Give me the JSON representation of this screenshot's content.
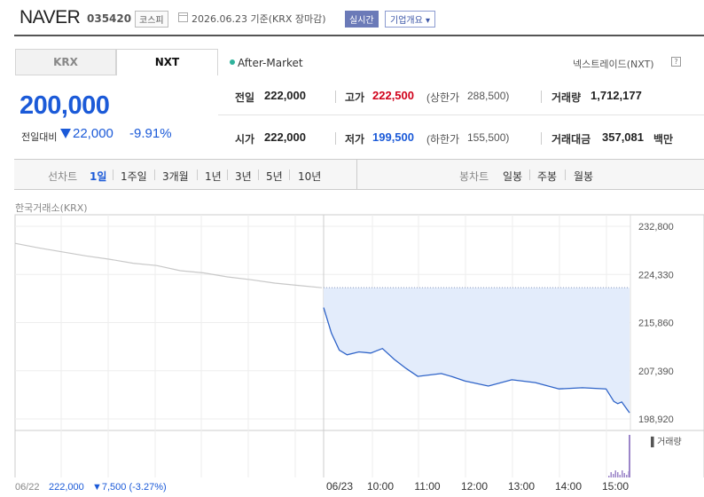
{
  "header": {
    "name": "NAVER",
    "code": "035420",
    "market": "코스피",
    "date": "2026.06.23 기준(KRX 장마감)",
    "realtime": "실시간",
    "overview": "기업개요 ▾"
  },
  "tabs": {
    "krx": "KRX",
    "nxt": "NXT"
  },
  "after_market": "After-Market",
  "nxt_trade": "넥스트레이드(NXT)",
  "help": "?",
  "price": {
    "current": "200,000",
    "change_label": "전일대비",
    "change": "22,000",
    "change_pct": "-9.91%"
  },
  "stats": {
    "prev_close_label": "전일",
    "prev_close": "222,000",
    "open_label": "시가",
    "open": "222,000",
    "high_label": "고가",
    "high": "222,500",
    "upper_limit_label": "(상한가",
    "upper_limit": "288,500)",
    "low_label": "저가",
    "low": "199,500",
    "lower_limit_label": "(하한가",
    "lower_limit": "155,500)",
    "volume_label": "거래량",
    "volume": "1,712,177",
    "amount_label": "거래대금",
    "amount": "357,081",
    "amount_unit": "백만"
  },
  "period": {
    "line_label": "선차트",
    "line_options": [
      "1일",
      "1주일",
      "3개월",
      "1년",
      "3년",
      "5년",
      "10년"
    ],
    "candle_label": "봉차트",
    "candle_options": [
      "일봉",
      "주봉",
      "월봉"
    ]
  },
  "chart_source": "한국거래소(KRX)",
  "colors": {
    "up": "#d0021b",
    "down": "#1b5ad8",
    "accent": "#6b7ab8"
  },
  "chart_data": {
    "type": "line",
    "y_ticks": [
      "232,800",
      "224,330",
      "215,860",
      "207,390",
      "198,920"
    ],
    "ylim": [
      198920,
      232800
    ],
    "reference_price": 222000,
    "x_ticks": [
      "06/23",
      "10:00",
      "11:00",
      "12:00",
      "13:00",
      "14:00",
      "15:00"
    ],
    "prev_day_label": "06/22",
    "prev_day_close": "222,000",
    "prev_day_change": "▼7,500 (-3.27%)",
    "volume_label": "▌거래량",
    "series": [
      {
        "name": "",
        "x": [
          "06/22 09:00",
          "06/22 09:30",
          "06/22 10:00",
          "06/22 10:30",
          "06/22 11:00",
          "06/22 11:30",
          "06/22 12:00",
          "06/22 12:30",
          "06/22 13:00",
          "06/22 13:30",
          "06/22 14:00",
          "06/22 14:30",
          "06/22 15:00",
          "06/22 15:30"
        ],
        "y": [
          229800,
          229000,
          228300,
          227600,
          227000,
          226300,
          225900,
          225000,
          224600,
          223900,
          223400,
          222800,
          222400,
          222000
        ]
      },
      {
        "name": "",
        "x": [
          "09:00",
          "09:10",
          "09:20",
          "09:30",
          "09:45",
          "10:00",
          "10:15",
          "10:30",
          "10:45",
          "11:00",
          "11:30",
          "11:45",
          "12:00",
          "12:30",
          "13:00",
          "13:30",
          "14:00",
          "14:30",
          "15:00",
          "15:10",
          "15:15",
          "15:20",
          "15:30"
        ],
        "y": [
          218500,
          214000,
          211000,
          210200,
          210700,
          210500,
          211300,
          209400,
          207800,
          206400,
          206900,
          206300,
          205600,
          204700,
          205800,
          205300,
          204200,
          204400,
          204200,
          202000,
          201600,
          201900,
          200000
        ]
      }
    ]
  }
}
